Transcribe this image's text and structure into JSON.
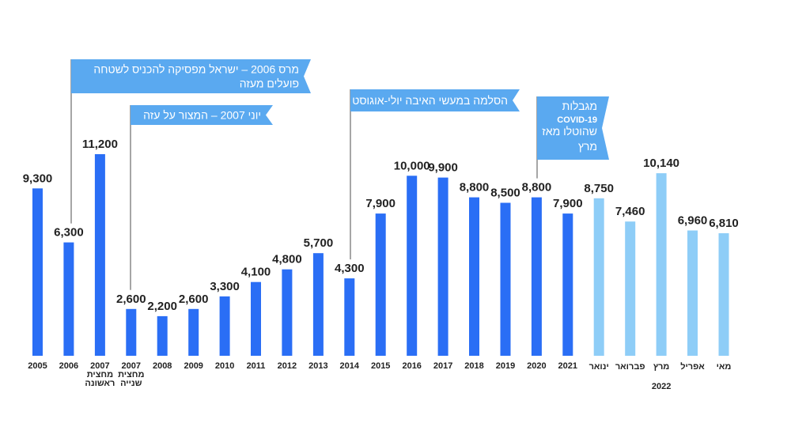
{
  "chart_data": {
    "type": "bar",
    "categories": [
      [
        "2005"
      ],
      [
        "2006"
      ],
      [
        "2007",
        "מחצית",
        "ראשונה"
      ],
      [
        "2007",
        "מחצית",
        "שנייה"
      ],
      [
        "2008"
      ],
      [
        "2009"
      ],
      [
        "2010"
      ],
      [
        "2011"
      ],
      [
        "2012"
      ],
      [
        "2013"
      ],
      [
        "2014"
      ],
      [
        "2015"
      ],
      [
        "2016"
      ],
      [
        "2017"
      ],
      [
        "2018"
      ],
      [
        "2019"
      ],
      [
        "2020"
      ],
      [
        "2021"
      ],
      [
        "ינואר"
      ],
      [
        "פברואר"
      ],
      [
        "מרץ"
      ],
      [
        "אפריל"
      ],
      [
        "מאי"
      ]
    ],
    "values": [
      9300,
      6300,
      11200,
      2600,
      2200,
      2600,
      3300,
      4100,
      4800,
      5700,
      4300,
      7900,
      10000,
      9900,
      8800,
      8500,
      8800,
      7900,
      8750,
      7460,
      10140,
      6960,
      6810
    ],
    "value_labels": [
      "9,300",
      "6,300",
      "11,200",
      "2,600",
      "2,200",
      "2,600",
      "3,300",
      "4,100",
      "4,800",
      "5,700",
      "4,300",
      "7,900",
      "10,000",
      "9,900",
      "8,800",
      "8,500",
      "8,800",
      "7,900",
      "8,750",
      "7,460",
      "10,140",
      "6,960",
      "6,810"
    ],
    "group_label": "2022",
    "ylim": [
      0,
      11500
    ],
    "grid": false,
    "colors": {
      "yearly": "#2a6ef5",
      "monthly_2022": "#8ecdf7",
      "annotation_box": "#5aa9f0",
      "annotation_line": "#888888"
    },
    "annotations": [
      {
        "lines": [
          "מרס 2006 – ישראל מפסיקה להכניס לשטחה",
          "פועלים מעזה"
        ],
        "category_index": 1
      },
      {
        "lines": [
          "יוני 2007 – המצור על עזה"
        ],
        "category_index": 3
      },
      {
        "lines": [
          "הסלמה במעשי האיבה יולי-אוגוסט"
        ],
        "category_index": 10
      },
      {
        "lines": [
          "מגבלות",
          "COVID-19",
          "שהוטלו מאז",
          "מרץ"
        ],
        "category_index": 16
      }
    ]
  }
}
